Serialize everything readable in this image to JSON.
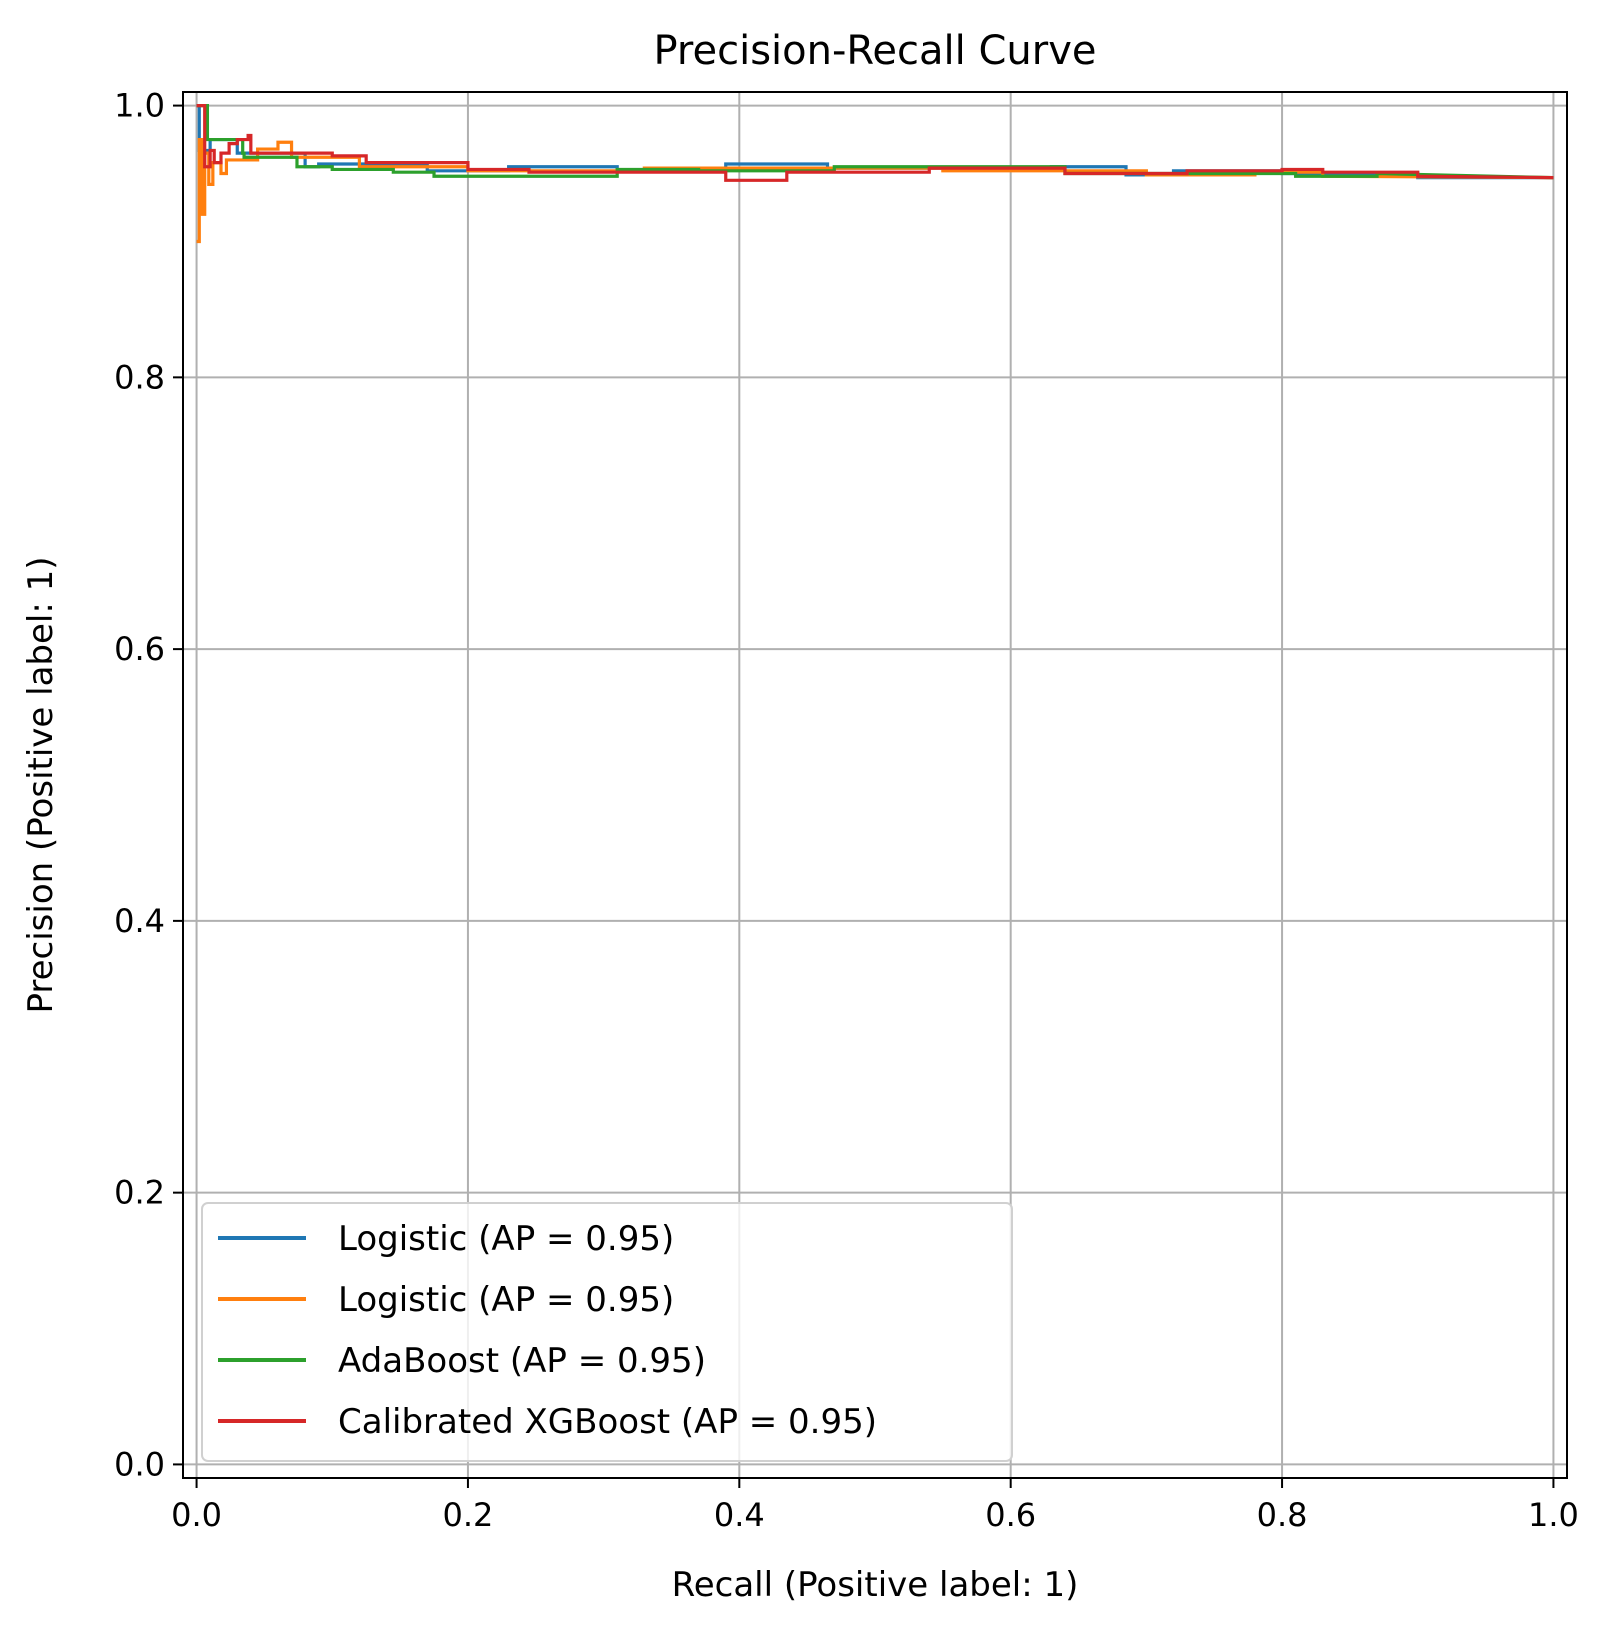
{
  "chart_data": {
    "type": "line",
    "title": "Precision-Recall Curve",
    "xlabel": "Recall (Positive label: 1)",
    "ylabel": "Precision (Positive label: 1)",
    "xlim": [
      -0.01,
      1.01
    ],
    "ylim": [
      -0.01,
      1.01
    ],
    "xticks": [
      0.0,
      0.2,
      0.4,
      0.6,
      0.8,
      1.0
    ],
    "yticks": [
      0.0,
      0.2,
      0.4,
      0.6,
      0.8,
      1.0
    ],
    "xtick_labels": [
      "0.0",
      "0.2",
      "0.4",
      "0.6",
      "0.8",
      "1.0"
    ],
    "ytick_labels": [
      "0.0",
      "0.2",
      "0.4",
      "0.6",
      "0.8",
      "1.0"
    ],
    "grid": true,
    "legend_position": "lower-left",
    "series": [
      {
        "name": "Logistic (AP = 0.95)",
        "color": "#1f77b4",
        "points": [
          [
            0.0,
            1.0
          ],
          [
            0.002,
            1.0
          ],
          [
            0.002,
            0.967
          ],
          [
            0.01,
            0.967
          ],
          [
            0.01,
            0.975
          ],
          [
            0.03,
            0.975
          ],
          [
            0.03,
            0.965
          ],
          [
            0.08,
            0.965
          ],
          [
            0.08,
            0.955
          ],
          [
            0.09,
            0.955
          ],
          [
            0.09,
            0.957
          ],
          [
            0.17,
            0.957
          ],
          [
            0.17,
            0.952
          ],
          [
            0.23,
            0.952
          ],
          [
            0.23,
            0.955
          ],
          [
            0.31,
            0.955
          ],
          [
            0.31,
            0.952
          ],
          [
            0.39,
            0.952
          ],
          [
            0.39,
            0.957
          ],
          [
            0.465,
            0.957
          ],
          [
            0.465,
            0.954
          ],
          [
            0.63,
            0.954
          ],
          [
            0.63,
            0.955
          ],
          [
            0.685,
            0.955
          ],
          [
            0.685,
            0.949
          ],
          [
            0.72,
            0.949
          ],
          [
            0.72,
            0.952
          ],
          [
            0.8,
            0.952
          ],
          [
            0.8,
            0.95
          ],
          [
            0.9,
            0.95
          ],
          [
            0.9,
            0.947
          ],
          [
            1.0,
            0.947
          ]
        ]
      },
      {
        "name": "Logistic (AP = 0.95)",
        "color": "#ff7f0e",
        "points": [
          [
            0.0,
            0.9
          ],
          [
            0.002,
            0.9
          ],
          [
            0.002,
            0.975
          ],
          [
            0.004,
            0.975
          ],
          [
            0.004,
            0.92
          ],
          [
            0.006,
            0.92
          ],
          [
            0.006,
            0.965
          ],
          [
            0.009,
            0.965
          ],
          [
            0.009,
            0.942
          ],
          [
            0.012,
            0.942
          ],
          [
            0.012,
            0.958
          ],
          [
            0.018,
            0.958
          ],
          [
            0.018,
            0.95
          ],
          [
            0.022,
            0.95
          ],
          [
            0.022,
            0.96
          ],
          [
            0.045,
            0.96
          ],
          [
            0.045,
            0.968
          ],
          [
            0.06,
            0.968
          ],
          [
            0.06,
            0.973
          ],
          [
            0.07,
            0.973
          ],
          [
            0.07,
            0.962
          ],
          [
            0.12,
            0.962
          ],
          [
            0.12,
            0.955
          ],
          [
            0.2,
            0.955
          ],
          [
            0.2,
            0.952
          ],
          [
            0.33,
            0.952
          ],
          [
            0.33,
            0.954
          ],
          [
            0.55,
            0.954
          ],
          [
            0.55,
            0.952
          ],
          [
            0.7,
            0.952
          ],
          [
            0.7,
            0.949
          ],
          [
            0.78,
            0.949
          ],
          [
            0.78,
            0.951
          ],
          [
            0.83,
            0.951
          ],
          [
            0.83,
            0.948
          ],
          [
            1.0,
            0.947
          ]
        ]
      },
      {
        "name": "AdaBoost (AP = 0.95)",
        "color": "#2ca02c",
        "points": [
          [
            0.0,
            1.0
          ],
          [
            0.008,
            1.0
          ],
          [
            0.008,
            0.975
          ],
          [
            0.034,
            0.975
          ],
          [
            0.034,
            0.965
          ],
          [
            0.035,
            0.965
          ],
          [
            0.035,
            0.962
          ],
          [
            0.074,
            0.962
          ],
          [
            0.074,
            0.955
          ],
          [
            0.1,
            0.955
          ],
          [
            0.1,
            0.953
          ],
          [
            0.145,
            0.953
          ],
          [
            0.145,
            0.951
          ],
          [
            0.175,
            0.951
          ],
          [
            0.175,
            0.948
          ],
          [
            0.31,
            0.948
          ],
          [
            0.31,
            0.953
          ],
          [
            0.37,
            0.953
          ],
          [
            0.37,
            0.952
          ],
          [
            0.47,
            0.952
          ],
          [
            0.47,
            0.955
          ],
          [
            0.64,
            0.955
          ],
          [
            0.64,
            0.95
          ],
          [
            0.81,
            0.95
          ],
          [
            0.81,
            0.948
          ],
          [
            0.87,
            0.948
          ],
          [
            0.87,
            0.95
          ],
          [
            1.0,
            0.947
          ]
        ]
      },
      {
        "name": "Calibrated XGBoost (AP = 0.95)",
        "color": "#d62728",
        "points": [
          [
            0.0,
            1.0
          ],
          [
            0.006,
            1.0
          ],
          [
            0.006,
            0.955
          ],
          [
            0.01,
            0.955
          ],
          [
            0.01,
            0.967
          ],
          [
            0.013,
            0.967
          ],
          [
            0.013,
            0.958
          ],
          [
            0.018,
            0.958
          ],
          [
            0.018,
            0.965
          ],
          [
            0.024,
            0.965
          ],
          [
            0.024,
            0.972
          ],
          [
            0.03,
            0.972
          ],
          [
            0.03,
            0.975
          ],
          [
            0.038,
            0.975
          ],
          [
            0.038,
            0.978
          ],
          [
            0.04,
            0.978
          ],
          [
            0.04,
            0.965
          ],
          [
            0.1,
            0.965
          ],
          [
            0.1,
            0.963
          ],
          [
            0.125,
            0.963
          ],
          [
            0.125,
            0.958
          ],
          [
            0.2,
            0.958
          ],
          [
            0.2,
            0.953
          ],
          [
            0.245,
            0.953
          ],
          [
            0.245,
            0.951
          ],
          [
            0.39,
            0.951
          ],
          [
            0.39,
            0.945
          ],
          [
            0.435,
            0.945
          ],
          [
            0.435,
            0.951
          ],
          [
            0.54,
            0.951
          ],
          [
            0.54,
            0.954
          ],
          [
            0.64,
            0.954
          ],
          [
            0.64,
            0.95
          ],
          [
            0.73,
            0.95
          ],
          [
            0.73,
            0.952
          ],
          [
            0.8,
            0.952
          ],
          [
            0.8,
            0.953
          ],
          [
            0.83,
            0.953
          ],
          [
            0.83,
            0.951
          ],
          [
            0.9,
            0.951
          ],
          [
            0.9,
            0.948
          ],
          [
            1.0,
            0.947
          ]
        ]
      }
    ]
  }
}
